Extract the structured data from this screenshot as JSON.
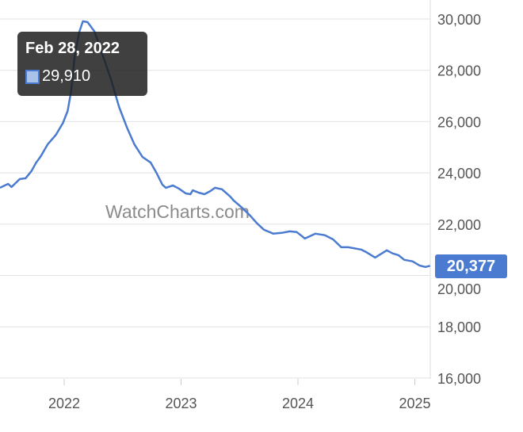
{
  "chart_data": {
    "type": "line",
    "title": "",
    "xlabel": "",
    "ylabel": "",
    "xlim": [
      2021.45,
      2025.13
    ],
    "ylim": [
      16000,
      30000
    ],
    "grid": true,
    "y_axis_side": "right",
    "line_color": "#4a7bd0",
    "x_ticks": [
      "2022",
      "2023",
      "2024",
      "2025"
    ],
    "x_tick_values": [
      2022,
      2023,
      2024,
      2025
    ],
    "y_ticks": [
      "16,000",
      "18,000",
      "20,000",
      "22,000",
      "24,000",
      "26,000",
      "28,000",
      "30,000"
    ],
    "y_tick_values": [
      16000,
      18000,
      20000,
      22000,
      24000,
      26000,
      28000,
      30000
    ],
    "x": [
      2021.45,
      2021.52,
      2021.55,
      2021.62,
      2021.67,
      2021.72,
      2021.76,
      2021.8,
      2021.86,
      2021.93,
      2021.99,
      2022.03,
      2022.06,
      2022.09,
      2022.13,
      2022.16,
      2022.2,
      2022.26,
      2022.33,
      2022.4,
      2022.47,
      2022.54,
      2022.6,
      2022.67,
      2022.74,
      2022.79,
      2022.84,
      2022.87,
      2022.93,
      2022.98,
      2023.04,
      2023.08,
      2023.1,
      2023.15,
      2023.2,
      2023.25,
      2023.29,
      2023.35,
      2023.42,
      2023.45,
      2023.52,
      2023.59,
      2023.65,
      2023.71,
      2023.79,
      2023.86,
      2023.93,
      2023.99,
      2024.06,
      2024.15,
      2024.23,
      2024.3,
      2024.37,
      2024.43,
      2024.54,
      2024.58,
      2024.66,
      2024.76,
      2024.81,
      2024.86,
      2024.91,
      2024.98,
      2025.04,
      2025.09,
      2025.13
    ],
    "values": [
      23420,
      23570,
      23450,
      23760,
      23790,
      24070,
      24400,
      24650,
      25120,
      25490,
      25950,
      26420,
      27190,
      28580,
      29510,
      29910,
      29880,
      29510,
      28580,
      27650,
      26570,
      25740,
      25120,
      24620,
      24400,
      24000,
      23540,
      23420,
      23510,
      23390,
      23200,
      23170,
      23320,
      23230,
      23170,
      23290,
      23420,
      23360,
      23080,
      22920,
      22650,
      22340,
      22030,
      21780,
      21630,
      21660,
      21720,
      21690,
      21440,
      21630,
      21570,
      21410,
      21100,
      21100,
      21010,
      20920,
      20700,
      20980,
      20860,
      20790,
      20610,
      20550,
      20390,
      20330,
      20377
    ],
    "tooltip": {
      "date": "Feb 28, 2022",
      "value": "29,910",
      "swatch_color": "#a9c2ea"
    },
    "last_value_label": "20,377",
    "watermark": "WatchCharts.com"
  }
}
